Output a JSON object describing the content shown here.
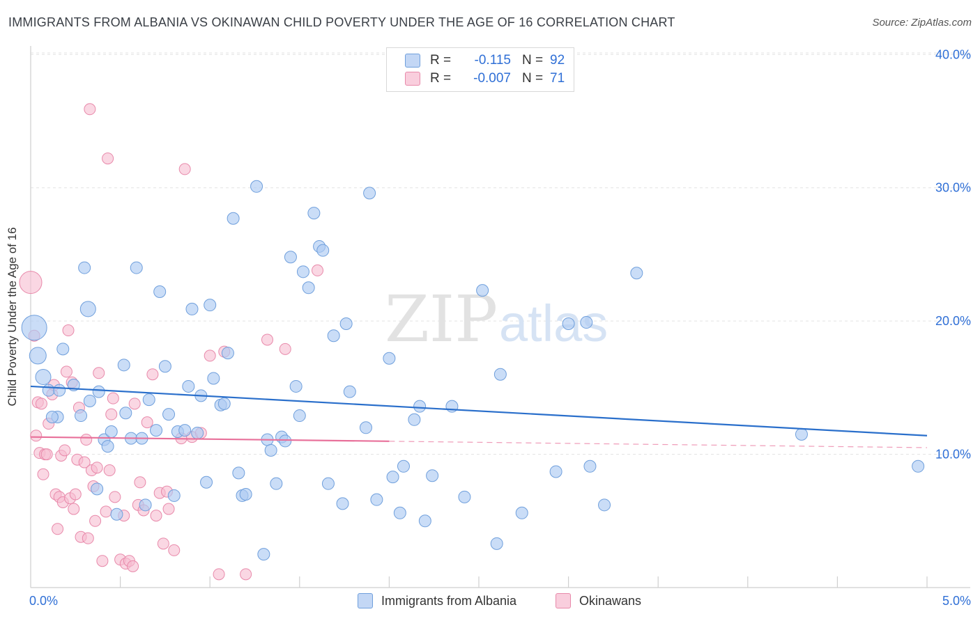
{
  "title": "IMMIGRANTS FROM ALBANIA VS OKINAWAN CHILD POVERTY UNDER THE AGE OF 16 CORRELATION CHART",
  "source": "Source: ZipAtlas.com",
  "watermark": {
    "zip": "ZIP",
    "atlas": "atlas"
  },
  "colors": {
    "blue_fill": "#aecbf2",
    "blue_stroke": "#6f9fdc",
    "blue_line": "#2a6fcb",
    "pink_fill": "#f6bcd0",
    "pink_stroke": "#e889aa",
    "pink_line": "#e8709a",
    "tick_text": "#2f6fd6",
    "grid": "#e3e3e3"
  },
  "legend_top": {
    "rows": [
      {
        "r_label": "R =",
        "r_value": "-0.115",
        "n_label": "N =",
        "n_value": "92"
      },
      {
        "r_label": "R =",
        "r_value": "-0.007",
        "n_label": "N =",
        "n_value": "71"
      }
    ]
  },
  "legend_bottom": {
    "items": [
      {
        "label": "Immigrants from Albania"
      },
      {
        "label": "Okinawans"
      }
    ]
  },
  "chart_data": {
    "type": "scatter",
    "title": "IMMIGRANTS FROM ALBANIA VS OKINAWAN CHILD POVERTY UNDER THE AGE OF 16 CORRELATION CHART",
    "xlabel": "",
    "ylabel": "Child Poverty Under the Age of 16",
    "xlim": [
      0,
      5
    ],
    "ylim": [
      0,
      42
    ],
    "x_tick_labels": [
      {
        "value": 0,
        "label": "0.0%"
      },
      {
        "value": 5,
        "label": "5.0%"
      }
    ],
    "y_tick_labels": [
      {
        "value": 10,
        "label": "10.0%"
      },
      {
        "value": 20,
        "label": "20.0%"
      },
      {
        "value": 30,
        "label": "30.0%"
      },
      {
        "value": 40,
        "label": "40.0%"
      }
    ],
    "y_gridlines": [
      10,
      20,
      30,
      40
    ],
    "x_minor_ticks": [
      0.5,
      1.0,
      1.5,
      2.0,
      2.5,
      3.0,
      3.5,
      4.0,
      4.5,
      5.0
    ],
    "grid": true,
    "legend_position": "bottom",
    "series": [
      {
        "name": "Immigrants from Albania",
        "color": "#aecbf2",
        "trend": {
          "x": [
            0,
            5
          ],
          "y": [
            15.1,
            11.4
          ],
          "dashed_from": null
        },
        "points": [
          [
            0.02,
            19.5
          ],
          [
            0.04,
            17.4
          ],
          [
            0.07,
            15.8
          ],
          [
            0.1,
            14.8
          ],
          [
            0.15,
            12.8
          ],
          [
            0.18,
            17.9
          ],
          [
            0.24,
            15.2
          ],
          [
            0.28,
            12.9
          ],
          [
            0.3,
            24.0
          ],
          [
            0.32,
            20.9
          ],
          [
            0.33,
            14.0
          ],
          [
            0.37,
            7.4
          ],
          [
            0.38,
            14.7
          ],
          [
            0.41,
            11.1
          ],
          [
            0.43,
            10.6
          ],
          [
            0.45,
            11.7
          ],
          [
            0.48,
            5.5
          ],
          [
            0.52,
            16.7
          ],
          [
            0.53,
            13.1
          ],
          [
            0.56,
            11.2
          ],
          [
            0.59,
            24.0
          ],
          [
            0.62,
            11.2
          ],
          [
            0.64,
            6.2
          ],
          [
            0.66,
            14.1
          ],
          [
            0.7,
            11.8
          ],
          [
            0.72,
            22.2
          ],
          [
            0.75,
            16.6
          ],
          [
            0.77,
            13.0
          ],
          [
            0.8,
            6.9
          ],
          [
            0.82,
            11.7
          ],
          [
            0.86,
            11.8
          ],
          [
            0.88,
            15.1
          ],
          [
            0.9,
            20.9
          ],
          [
            0.93,
            11.6
          ],
          [
            0.95,
            14.4
          ],
          [
            0.98,
            7.9
          ],
          [
            1.0,
            21.2
          ],
          [
            1.02,
            15.7
          ],
          [
            1.06,
            13.7
          ],
          [
            1.08,
            13.8
          ],
          [
            1.1,
            17.6
          ],
          [
            1.13,
            27.7
          ],
          [
            1.16,
            8.6
          ],
          [
            1.18,
            6.9
          ],
          [
            1.2,
            7.0
          ],
          [
            1.26,
            30.1
          ],
          [
            1.3,
            2.5
          ],
          [
            1.32,
            11.1
          ],
          [
            1.34,
            10.3
          ],
          [
            1.37,
            7.8
          ],
          [
            1.4,
            11.3
          ],
          [
            1.42,
            11.0
          ],
          [
            1.45,
            24.8
          ],
          [
            1.48,
            15.1
          ],
          [
            1.5,
            12.9
          ],
          [
            1.52,
            23.7
          ],
          [
            1.55,
            22.5
          ],
          [
            1.58,
            28.1
          ],
          [
            1.61,
            25.6
          ],
          [
            1.63,
            25.3
          ],
          [
            1.66,
            7.8
          ],
          [
            1.69,
            18.9
          ],
          [
            1.74,
            6.3
          ],
          [
            1.76,
            19.8
          ],
          [
            1.78,
            14.7
          ],
          [
            1.87,
            12.0
          ],
          [
            1.89,
            29.6
          ],
          [
            1.93,
            6.6
          ],
          [
            2.0,
            17.2
          ],
          [
            2.02,
            8.3
          ],
          [
            2.06,
            5.6
          ],
          [
            2.08,
            9.1
          ],
          [
            2.14,
            12.6
          ],
          [
            2.17,
            13.6
          ],
          [
            2.2,
            5.0
          ],
          [
            2.24,
            8.4
          ],
          [
            2.35,
            13.6
          ],
          [
            2.42,
            6.8
          ],
          [
            2.52,
            22.3
          ],
          [
            2.6,
            3.3
          ],
          [
            2.62,
            16.0
          ],
          [
            2.74,
            5.6
          ],
          [
            2.93,
            8.7
          ],
          [
            3.0,
            19.8
          ],
          [
            3.1,
            19.9
          ],
          [
            3.12,
            9.1
          ],
          [
            3.2,
            6.2
          ],
          [
            3.38,
            23.6
          ],
          [
            4.3,
            11.5
          ],
          [
            4.95,
            9.1
          ],
          [
            0.16,
            14.8
          ],
          [
            0.12,
            12.8
          ]
        ]
      },
      {
        "name": "Okinawans",
        "color": "#f6bcd0",
        "trend": {
          "x": [
            0,
            5
          ],
          "y": [
            11.3,
            10.5
          ],
          "dashed_from": 2.0
        },
        "points": [
          [
            0.0,
            22.9
          ],
          [
            0.02,
            18.9
          ],
          [
            0.03,
            11.4
          ],
          [
            0.04,
            13.9
          ],
          [
            0.05,
            10.1
          ],
          [
            0.06,
            13.8
          ],
          [
            0.07,
            8.5
          ],
          [
            0.08,
            10.0
          ],
          [
            0.09,
            10.0
          ],
          [
            0.1,
            12.3
          ],
          [
            0.12,
            14.5
          ],
          [
            0.13,
            15.2
          ],
          [
            0.14,
            7.0
          ],
          [
            0.15,
            4.4
          ],
          [
            0.16,
            6.8
          ],
          [
            0.17,
            9.9
          ],
          [
            0.18,
            6.4
          ],
          [
            0.19,
            10.3
          ],
          [
            0.2,
            16.2
          ],
          [
            0.21,
            19.3
          ],
          [
            0.22,
            6.7
          ],
          [
            0.23,
            15.4
          ],
          [
            0.24,
            5.9
          ],
          [
            0.25,
            7.0
          ],
          [
            0.26,
            9.6
          ],
          [
            0.27,
            13.5
          ],
          [
            0.28,
            3.8
          ],
          [
            0.3,
            9.4
          ],
          [
            0.31,
            11.1
          ],
          [
            0.32,
            3.7
          ],
          [
            0.33,
            35.9
          ],
          [
            0.34,
            8.8
          ],
          [
            0.35,
            7.6
          ],
          [
            0.36,
            5.0
          ],
          [
            0.37,
            9.0
          ],
          [
            0.38,
            16.1
          ],
          [
            0.4,
            2.0
          ],
          [
            0.42,
            5.7
          ],
          [
            0.43,
            32.2
          ],
          [
            0.44,
            8.8
          ],
          [
            0.45,
            13.0
          ],
          [
            0.46,
            14.2
          ],
          [
            0.47,
            6.8
          ],
          [
            0.5,
            2.1
          ],
          [
            0.52,
            5.4
          ],
          [
            0.53,
            1.8
          ],
          [
            0.55,
            2.0
          ],
          [
            0.57,
            1.6
          ],
          [
            0.58,
            13.8
          ],
          [
            0.6,
            6.2
          ],
          [
            0.61,
            7.9
          ],
          [
            0.63,
            5.8
          ],
          [
            0.65,
            12.4
          ],
          [
            0.68,
            16.0
          ],
          [
            0.7,
            5.4
          ],
          [
            0.72,
            7.1
          ],
          [
            0.74,
            3.3
          ],
          [
            0.76,
            7.2
          ],
          [
            0.77,
            5.9
          ],
          [
            0.8,
            2.8
          ],
          [
            0.84,
            11.2
          ],
          [
            0.86,
            31.4
          ],
          [
            0.9,
            11.3
          ],
          [
            0.95,
            11.6
          ],
          [
            1.0,
            17.4
          ],
          [
            1.05,
            1.0
          ],
          [
            1.08,
            17.7
          ],
          [
            1.2,
            1.0
          ],
          [
            1.32,
            18.6
          ],
          [
            1.42,
            17.9
          ],
          [
            1.6,
            23.8
          ]
        ]
      }
    ]
  }
}
